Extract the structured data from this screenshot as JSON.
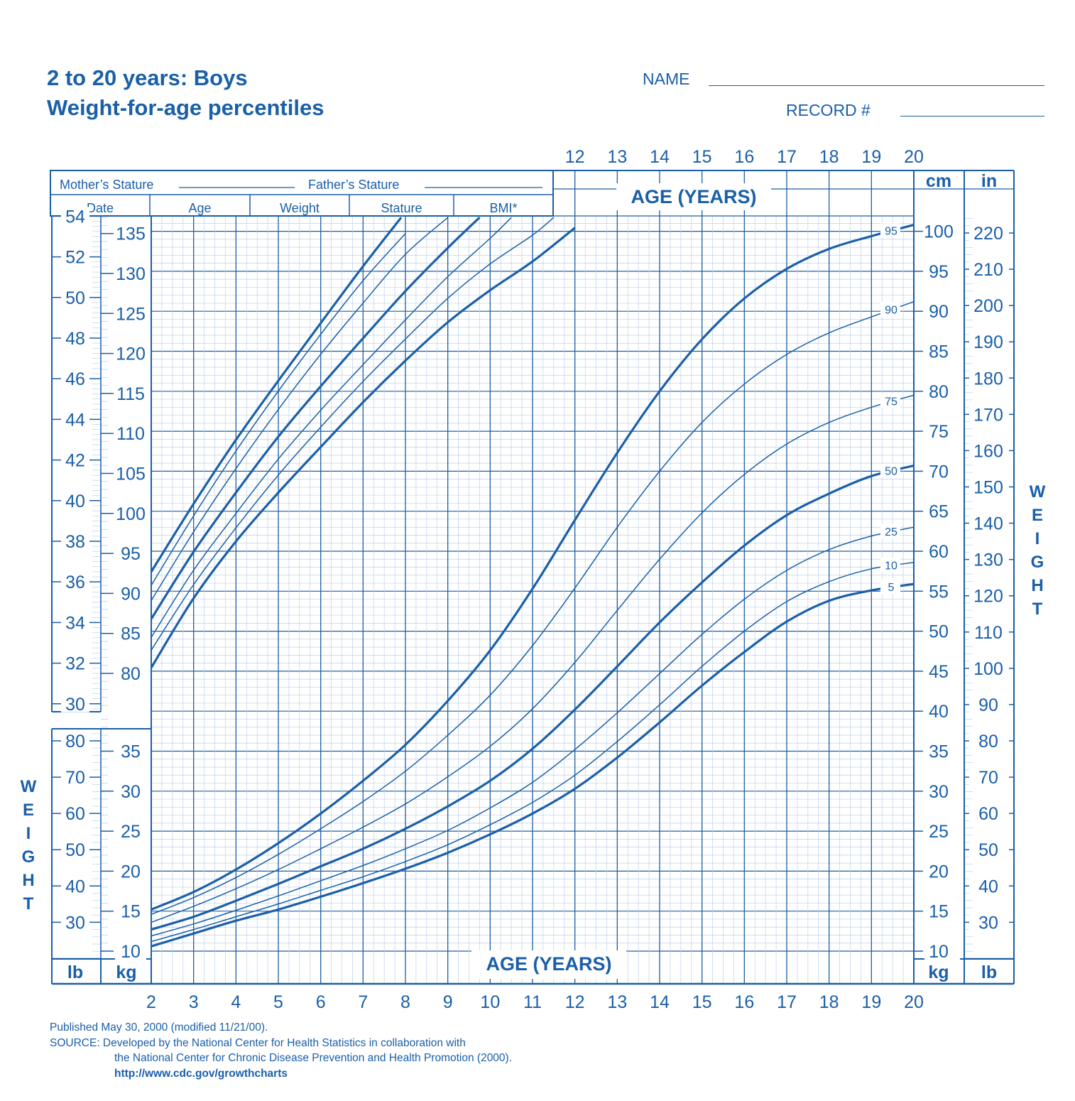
{
  "header": {
    "title_line1": "2 to 20 years: Boys",
    "title_line2": "Weight-for-age percentiles",
    "name_label": "NAME",
    "record_label": "RECORD #"
  },
  "record_table": {
    "mother_label": "Mother’s Stature",
    "father_label": "Father’s Stature",
    "columns": [
      "Date",
      "Age",
      "Weight",
      "Stature",
      "BMI*"
    ]
  },
  "footer": {
    "published": "Published May 30, 2000 (modified 11/21/00).",
    "source_line1": "SOURCE: Developed by the National Center for Health Statistics in collaboration with",
    "source_line2": "the National Center for Chronic Disease Prevention and Health Promotion (2000).",
    "url": "http://www.cdc.gov/growthcharts"
  },
  "chart_data": {
    "type": "line",
    "title": "Weight-for-age percentiles",
    "xlabel": "AGE (YEARS)",
    "ylabel": "WEIGHT",
    "side_label_letters": [
      "W",
      "E",
      "I",
      "G",
      "H",
      "T"
    ],
    "x_ticks": [
      2,
      3,
      4,
      5,
      6,
      7,
      8,
      9,
      10,
      11,
      12,
      13,
      14,
      15,
      16,
      17,
      18,
      19,
      20
    ],
    "x_ticks_top": [
      12,
      13,
      14,
      15,
      16,
      17,
      18,
      19,
      20
    ],
    "xlim": [
      2,
      20
    ],
    "unit_kg": "kg",
    "unit_lb": "lb",
    "unit_cm": "cm",
    "unit_in": "in",
    "weight_kg_ticks_left": [
      10,
      15,
      20,
      25,
      30,
      35
    ],
    "weight_kg_ticks_right": [
      10,
      15,
      20,
      25,
      30,
      35,
      40,
      45,
      50,
      55,
      60,
      65,
      70,
      75,
      80,
      85,
      90,
      95,
      100
    ],
    "weight_lb_ticks_left": [
      30,
      40,
      50,
      60,
      70,
      80
    ],
    "weight_lb_ticks_right": [
      30,
      40,
      50,
      60,
      70,
      80,
      90,
      100,
      110,
      120,
      130,
      140,
      150,
      160,
      170,
      180,
      190,
      200,
      210,
      220
    ],
    "ylim_kg": [
      10,
      105
    ],
    "stature_cm_ticks": [
      80,
      85,
      90,
      95,
      100,
      105,
      110,
      115,
      120,
      125,
      130,
      135
    ],
    "stature_in_ticks": [
      30,
      32,
      34,
      36,
      38,
      40,
      42,
      44,
      46,
      48,
      50,
      52,
      54
    ],
    "weight_series": [
      {
        "name": "95",
        "bold": true,
        "x": [
          2,
          3,
          4,
          5,
          6,
          7,
          8,
          9,
          10,
          11,
          12,
          13,
          14,
          15,
          16,
          17,
          18,
          19,
          20
        ],
        "values": [
          15.2,
          17.4,
          20.2,
          23.5,
          27.2,
          31.3,
          35.8,
          41.3,
          47.6,
          55.3,
          63.9,
          72.3,
          80.0,
          86.5,
          91.6,
          95.3,
          97.8,
          99.4,
          100.8
        ]
      },
      {
        "name": "90",
        "bold": false,
        "x": [
          2,
          3,
          4,
          5,
          6,
          7,
          8,
          9,
          10,
          11,
          12,
          13,
          14,
          15,
          16,
          17,
          18,
          19,
          20
        ],
        "values": [
          14.6,
          16.7,
          19.2,
          22.1,
          25.3,
          28.7,
          32.5,
          37.0,
          42.0,
          48.2,
          55.4,
          63.0,
          70.0,
          76.1,
          80.9,
          84.6,
          87.3,
          89.3,
          91.2
        ]
      },
      {
        "name": "75",
        "bold": false,
        "x": [
          2,
          3,
          4,
          5,
          6,
          7,
          8,
          9,
          10,
          11,
          12,
          13,
          14,
          15,
          16,
          17,
          18,
          19,
          20
        ],
        "values": [
          13.6,
          15.6,
          17.8,
          20.2,
          22.8,
          25.5,
          28.4,
          31.8,
          35.6,
          40.3,
          46.1,
          52.6,
          59.0,
          64.8,
          69.6,
          73.4,
          76.1,
          78.0,
          79.5
        ]
      },
      {
        "name": "50",
        "bold": true,
        "x": [
          2,
          3,
          4,
          5,
          6,
          7,
          8,
          9,
          10,
          11,
          12,
          13,
          14,
          15,
          16,
          17,
          18,
          19,
          20
        ],
        "values": [
          12.7,
          14.3,
          16.3,
          18.4,
          20.6,
          22.8,
          25.3,
          28.1,
          31.3,
          35.3,
          40.2,
          45.6,
          51.1,
          56.1,
          60.7,
          64.5,
          67.2,
          69.4,
          70.7
        ]
      },
      {
        "name": "25",
        "bold": false,
        "x": [
          2,
          3,
          4,
          5,
          6,
          7,
          8,
          9,
          10,
          11,
          12,
          13,
          14,
          15,
          16,
          17,
          18,
          19,
          20
        ],
        "values": [
          11.9,
          13.4,
          15.1,
          16.9,
          18.8,
          20.7,
          22.8,
          25.1,
          27.9,
          31.1,
          35.2,
          39.8,
          44.7,
          49.6,
          54.0,
          57.6,
          60.2,
          61.9,
          63.0
        ]
      },
      {
        "name": "10",
        "bold": false,
        "x": [
          2,
          3,
          4,
          5,
          6,
          7,
          8,
          9,
          10,
          11,
          12,
          13,
          14,
          15,
          16,
          17,
          18,
          19,
          20
        ],
        "values": [
          11.2,
          12.7,
          14.3,
          15.9,
          17.6,
          19.3,
          21.2,
          23.3,
          25.8,
          28.6,
          32.0,
          36.2,
          40.8,
          45.6,
          50.0,
          53.7,
          56.2,
          57.8,
          58.6
        ]
      },
      {
        "name": "5",
        "bold": true,
        "x": [
          2,
          3,
          4,
          5,
          6,
          7,
          8,
          9,
          10,
          11,
          12,
          13,
          14,
          15,
          16,
          17,
          18,
          19,
          20
        ],
        "values": [
          10.6,
          12.2,
          13.8,
          15.2,
          16.8,
          18.5,
          20.3,
          22.3,
          24.6,
          27.2,
          30.3,
          34.2,
          38.6,
          43.2,
          47.4,
          51.2,
          53.8,
          55.1,
          55.9
        ]
      }
    ],
    "stature_series": [
      {
        "bold": true,
        "x": [
          2,
          3,
          4,
          5,
          6,
          7,
          7.9
        ],
        "values": [
          92.7,
          101.2,
          109.2,
          116.6,
          123.8,
          130.9,
          137.0
        ]
      },
      {
        "bold": false,
        "x": [
          2,
          3,
          4,
          5,
          6,
          7,
          8.0
        ],
        "values": [
          91.0,
          99.7,
          107.8,
          115.3,
          122.4,
          129.1,
          135.0
        ]
      },
      {
        "bold": false,
        "x": [
          2,
          3,
          4,
          5,
          6,
          7,
          8,
          9.0
        ],
        "values": [
          89.1,
          97.7,
          105.6,
          113.0,
          119.9,
          126.3,
          132.4,
          137.0
        ]
      },
      {
        "bold": true,
        "x": [
          2,
          3,
          4,
          5,
          6,
          7,
          8,
          9,
          9.75
        ],
        "values": [
          86.8,
          95.2,
          102.6,
          109.6,
          115.9,
          121.9,
          127.8,
          133.2,
          137.0
        ]
      },
      {
        "bold": false,
        "x": [
          2,
          3,
          4,
          5,
          6,
          7,
          8,
          9,
          10,
          10.5
        ],
        "values": [
          84.5,
          92.9,
          100.0,
          106.8,
          112.9,
          118.6,
          124.2,
          129.6,
          134.4,
          137.0
        ]
      },
      {
        "bold": false,
        "x": [
          2,
          3,
          4,
          5,
          6,
          7,
          8,
          9,
          10,
          11,
          11.5
        ],
        "values": [
          82.9,
          91.1,
          98.2,
          104.8,
          110.8,
          116.5,
          121.8,
          126.9,
          131.2,
          134.8,
          137.0
        ]
      },
      {
        "bold": true,
        "x": [
          2,
          3,
          4,
          5,
          6,
          7,
          8,
          9,
          10,
          11,
          12.0
        ],
        "values": [
          80.7,
          89.4,
          96.5,
          102.6,
          108.3,
          113.9,
          119.1,
          123.9,
          127.9,
          131.5,
          135.7
        ]
      }
    ]
  }
}
